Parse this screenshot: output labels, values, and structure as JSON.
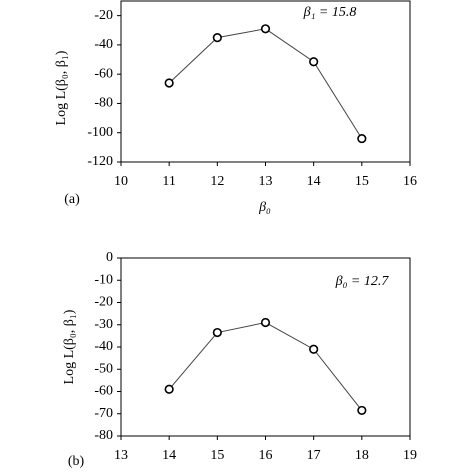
{
  "chart_data": [
    {
      "type": "line",
      "x_label": "β₀",
      "y_label": "Log L(β₀, β₁)",
      "annotation": "β₁ = 15.8",
      "panel_label": "(a)",
      "x": [
        11,
        12,
        13,
        14,
        15
      ],
      "values": [
        -66,
        -35,
        -29,
        -51.5,
        -104
      ],
      "color": "#444444",
      "xlim": [
        10,
        16
      ],
      "xticks": [
        10,
        11,
        12,
        13,
        14,
        15,
        16
      ],
      "ylim": [
        -120,
        -10
      ],
      "yticks": [
        -20,
        -40,
        -60,
        -80,
        -100,
        -120
      ]
    },
    {
      "type": "line",
      "y_label": "Log L(β₀, β₁)",
      "annotation": "β₀ = 12.7",
      "panel_label": "(b)",
      "x": [
        14,
        15,
        16,
        17,
        18
      ],
      "values": [
        -59,
        -33.5,
        -29,
        -41,
        -68.5
      ],
      "color": "#444444",
      "xlim": [
        13,
        19
      ],
      "xticks": [
        13,
        14,
        15,
        16,
        17,
        18,
        19
      ],
      "ylim": [
        -80,
        0
      ],
      "yticks": [
        0,
        -10,
        -20,
        -30,
        -40,
        -50,
        -60,
        -70,
        -80
      ]
    }
  ]
}
